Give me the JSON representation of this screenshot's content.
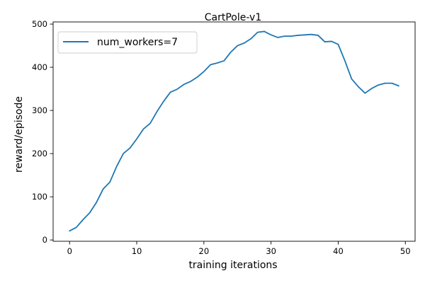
{
  "chart_data": {
    "type": "line",
    "title": "CartPole-v1",
    "xlabel": "training iterations",
    "ylabel": "reward/episode",
    "xlim": [
      -2.45,
      51.45
    ],
    "ylim": [
      -3,
      505
    ],
    "xticks": [
      0,
      10,
      20,
      30,
      40,
      50
    ],
    "yticks": [
      0,
      100,
      200,
      300,
      400,
      500
    ],
    "grid": false,
    "legend_position": "upper left",
    "colors": {
      "series": "#1f77b4",
      "axes": "#000000",
      "background": "#ffffff",
      "legend_border": "#cccccc"
    },
    "series": [
      {
        "name": "num_workers=7",
        "x": [
          0,
          1,
          2,
          3,
          4,
          5,
          6,
          7,
          8,
          9,
          10,
          11,
          12,
          13,
          14,
          15,
          16,
          17,
          18,
          19,
          20,
          21,
          22,
          23,
          24,
          25,
          26,
          27,
          28,
          29,
          30,
          31,
          32,
          33,
          34,
          35,
          36,
          37,
          38,
          39,
          40,
          41,
          42,
          43,
          44,
          45,
          46,
          47,
          48,
          49
        ],
        "y": [
          21,
          29,
          47,
          63,
          87,
          118,
          134,
          170,
          200,
          213,
          234,
          257,
          270,
          297,
          321,
          342,
          349,
          360,
          367,
          377,
          390,
          406,
          410,
          415,
          435,
          450,
          456,
          466,
          481,
          483,
          475,
          469,
          472,
          472,
          474,
          475,
          476,
          474,
          459,
          460,
          453,
          415,
          373,
          355,
          340,
          351,
          359,
          363,
          363,
          357
        ]
      }
    ]
  }
}
